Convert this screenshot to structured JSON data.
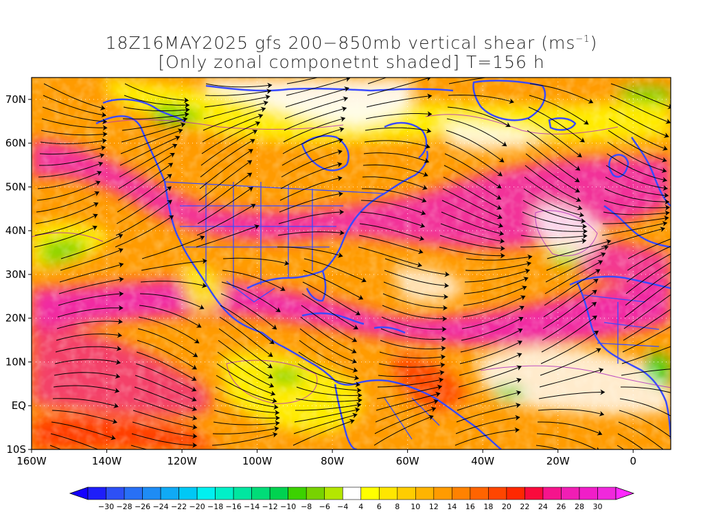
{
  "title": {
    "line1_prefix": "18Z16MAY2025 gfs 200−850mb vertical shear (ms",
    "line1_sup": "−1",
    "line1_suffix": ")",
    "line2": "[Only zonal componetnt shaded] T=156 h"
  },
  "map": {
    "projection": "lat-lon",
    "lon_range": [
      "160W",
      "10E"
    ],
    "lat_range": [
      "10S",
      "75N"
    ],
    "lat_ticks": [
      "70N",
      "60N",
      "50N",
      "40N",
      "30N",
      "20N",
      "10N",
      "EQ",
      "10S"
    ],
    "lon_ticks": [
      "160W",
      "140W",
      "120W",
      "100W",
      "80W",
      "60W",
      "40W",
      "20W",
      "0"
    ],
    "overlays": [
      "streamlines",
      "coastlines",
      "country-borders",
      "state-borders",
      "dotted-gridlines"
    ],
    "coastline_color": "#3a4bff",
    "streamline_color": "#000000",
    "contour_color": "#b030c0"
  },
  "colorbar": {
    "labels": [
      "−30",
      "−28",
      "−26",
      "−24",
      "−22",
      "−20",
      "−18",
      "−16",
      "−14",
      "−12",
      "−10",
      "−8",
      "−6",
      "−4",
      "4",
      "6",
      "8",
      "10",
      "12",
      "14",
      "16",
      "18",
      "20",
      "22",
      "24",
      "26",
      "28",
      "30"
    ],
    "colors": [
      "#1e1efa",
      "#2d50f5",
      "#2870f5",
      "#1e8cf5",
      "#10aaf5",
      "#00c8f5",
      "#00f0f0",
      "#00f0c8",
      "#00e6a0",
      "#00dc78",
      "#00d250",
      "#3cd200",
      "#78d200",
      "#b4e600",
      "#ffffff",
      "#ffff00",
      "#ffe600",
      "#ffcd00",
      "#ffb400",
      "#ff9b00",
      "#ff8200",
      "#ff6400",
      "#ff4600",
      "#ff2800",
      "#fa0a3c",
      "#f5148c",
      "#f01eb4",
      "#f01ec8",
      "#f028dc"
    ],
    "under_color": "#1400ff",
    "over_color": "#ff28ff"
  }
}
